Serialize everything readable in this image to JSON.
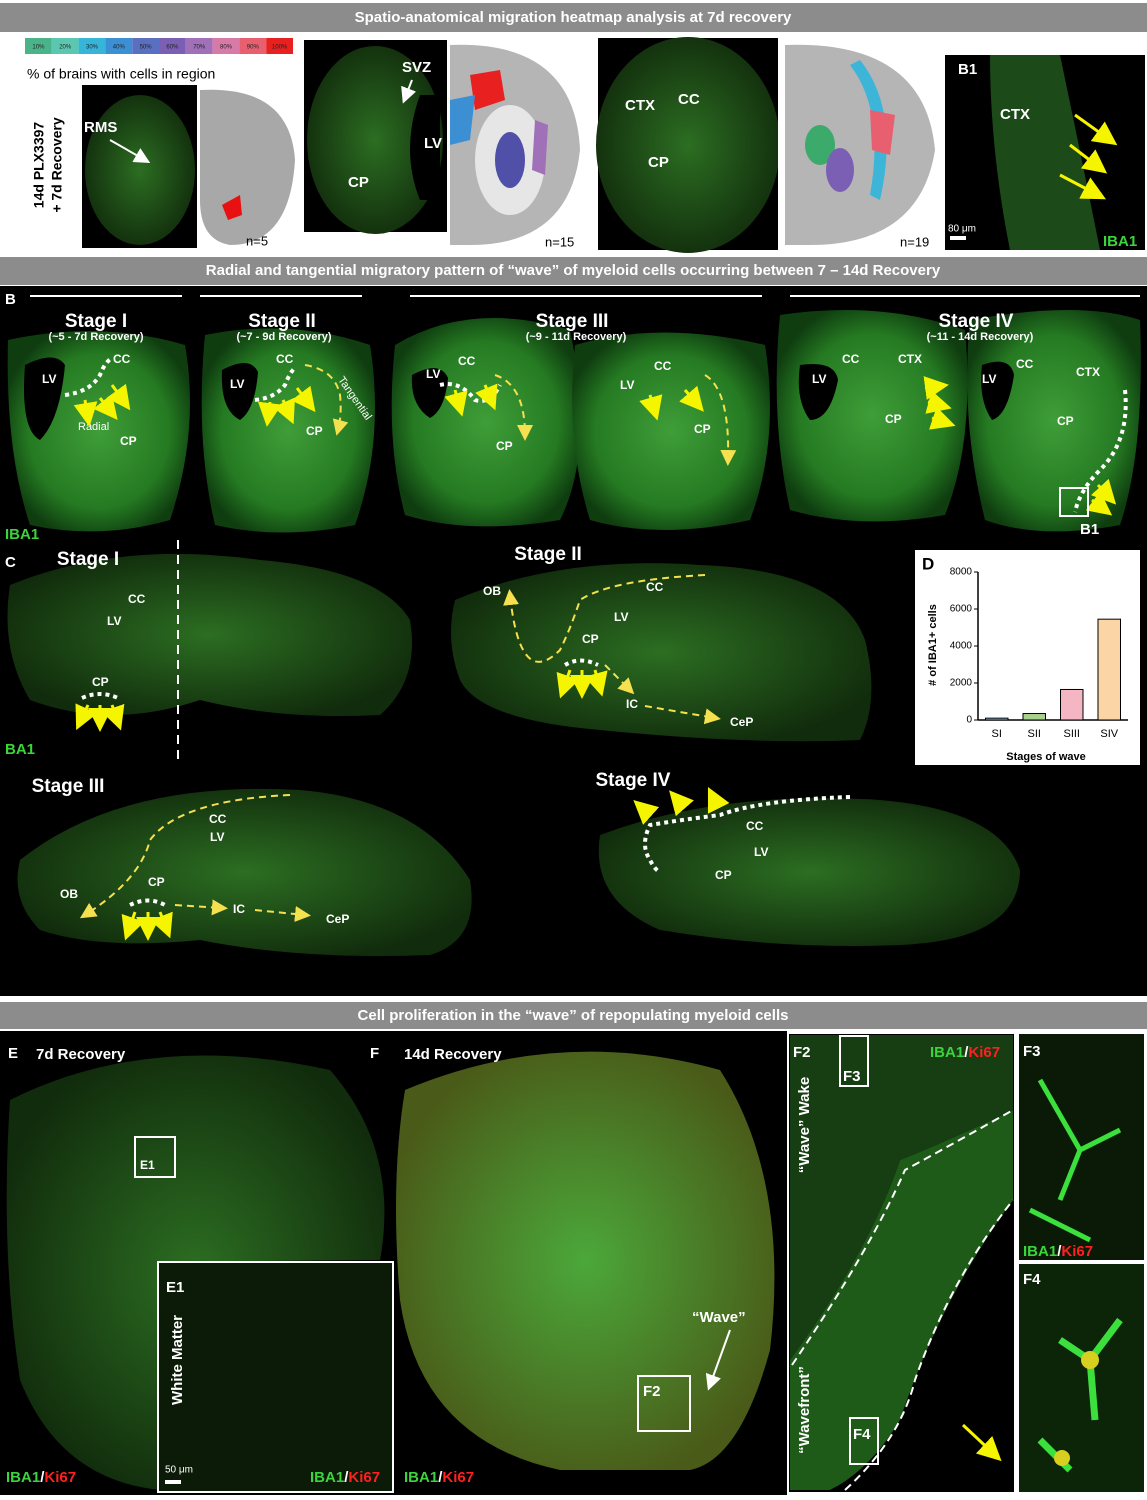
{
  "headers": [
    "Spatio-anatomical migration heatmap analysis at 7d recovery",
    "Radial and tangential migratory pattern of “wave” of myeloid cells occurring between 7 – 14d Recovery",
    "Cell proliferation in the “wave” of repopulating myeloid cells"
  ],
  "panel_a": {
    "scale": [
      "10%",
      "20%",
      "30%",
      "40%",
      "50%",
      "60%",
      "70%",
      "80%",
      "90%",
      "100%"
    ],
    "scale_title": "% of brains with cells in region",
    "group": [
      "14d PLX3397",
      "+ 7d Recovery"
    ],
    "images": [
      {
        "labels": [
          "RMS"
        ],
        "n": "n=5"
      },
      {
        "labels": [
          "SVZ",
          "LV",
          "CP"
        ],
        "n": "n=15"
      },
      {
        "labels": [
          "CTX",
          "CC",
          "CP"
        ],
        "n": "n=19"
      }
    ]
  },
  "panel_b1": {
    "letter": "B1",
    "labels": [
      "CTX"
    ],
    "scale_bar": "80 μm",
    "stain": "IBA1"
  },
  "panel_b": {
    "letter": "B",
    "stain": "IBA1",
    "stages": [
      {
        "title": "Stage I",
        "sub": "(~5 - 7d Recovery)",
        "labels": [
          "LV",
          "CC",
          "Radial",
          "CP"
        ]
      },
      {
        "title": "Stage II",
        "sub": "(~7 - 9d Recovery)",
        "labels": [
          "LV",
          "CC",
          "Tangential",
          "CP"
        ]
      },
      {
        "title": "Stage III",
        "sub": "(~9 - 11d Recovery)",
        "labels": [
          "LV",
          "CC",
          "CP",
          "LV",
          "CC",
          "CP"
        ]
      },
      {
        "title": "Stage IV",
        "sub": "(~11 - 14d Recovery)",
        "labels": [
          "LV",
          "CC",
          "CTX",
          "CP",
          "LV",
          "CC",
          "CTX",
          "CP",
          "B1"
        ]
      }
    ]
  },
  "panel_c": {
    "letter": "C",
    "stain": "BA1",
    "stages": [
      {
        "title": "Stage I",
        "labels": [
          "CC",
          "LV",
          "CP"
        ]
      },
      {
        "title": "Stage II",
        "labels": [
          "CC",
          "LV",
          "OB",
          "CP",
          "IC",
          "CeP"
        ]
      },
      {
        "title": "Stage III",
        "labels": [
          "CC",
          "LV",
          "OB",
          "CP",
          "IC",
          "CeP"
        ]
      },
      {
        "title": "Stage IV",
        "labels": [
          "CC",
          "LV",
          "CP"
        ]
      }
    ]
  },
  "panel_d": {
    "letter": "D"
  },
  "chart_data": {
    "type": "bar",
    "x_label": "Stages of wave",
    "y_label": "# of IBA1+ cells",
    "categories": [
      "SI",
      "SII",
      "SIII",
      "SIV"
    ],
    "values": [
      100,
      350,
      1650,
      5450
    ],
    "colors": [
      "#9cc3e6",
      "#a9d18e",
      "#f4b6c2",
      "#fbd5a5"
    ],
    "ylim": [
      0,
      8000
    ],
    "yticks": [
      0,
      2000,
      4000,
      6000,
      8000
    ]
  },
  "stain_double": [
    "IBA1",
    "/",
    "Ki67"
  ],
  "panel_e": {
    "letter": "E",
    "title": "7d Recovery",
    "inset": "E1",
    "inset_label": "White Matter",
    "scale_bar": "50 μm"
  },
  "panel_f": {
    "letter": "F",
    "title": "14d Recovery",
    "wave": "“Wave”",
    "inset": "F2"
  },
  "panel_f2": {
    "letter": "F2",
    "wake": "“Wave” Wake",
    "wavefront": "“Wavefront”",
    "insets": [
      "F3",
      "F4"
    ]
  },
  "panel_f3": {
    "letter": "F3"
  },
  "panel_f4": {
    "letter": "F4"
  }
}
